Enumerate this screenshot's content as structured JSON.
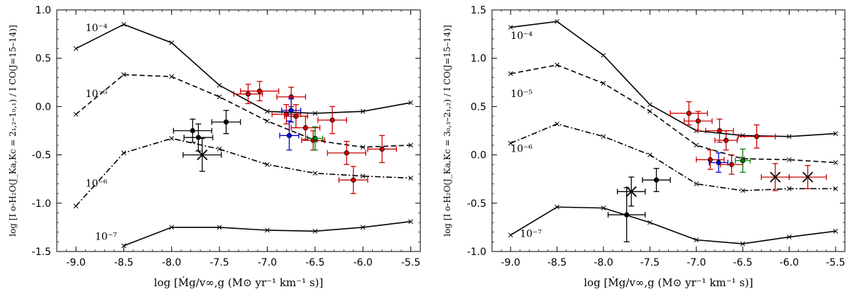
{
  "chart_data": [
    {
      "type": "scatter",
      "xlabel": "log [Ṁg/v∞,g (M⊙ yr⁻¹ km⁻¹ s)]",
      "ylabel": "log [I o-H₂O(J_Ka,Kc = 2₁,₂–1₀,₁) / I CO(J=15–14)]",
      "xlim": [
        -9.2,
        -5.4
      ],
      "ylim": [
        -1.5,
        1.0
      ],
      "xticks": [
        -9.0,
        -8.5,
        -8.0,
        -7.5,
        -7.0,
        -6.5,
        -6.0,
        -5.5
      ],
      "xtick_labels": [
        "-9.0",
        "-8.5",
        "-8.0",
        "-7.5",
        "-7.0",
        "-6.5",
        "-6.0",
        "-5.5"
      ],
      "yticks": [
        -1.5,
        -1.0,
        -0.5,
        0.0,
        0.5,
        1.0
      ],
      "ytick_labels": [
        "-1.5",
        "-1.0",
        "-0.5",
        "0.0",
        "0.5",
        "1.0"
      ],
      "model_curves": [
        {
          "name": "1e-4",
          "label": "10⁻⁴",
          "style": "solid",
          "label_x": -8.9,
          "label_y": 0.78,
          "x": [
            -9.0,
            -8.5,
            -8.0,
            -7.5,
            -7.0,
            -6.5,
            -6.0,
            -5.5
          ],
          "y": [
            0.6,
            0.85,
            0.66,
            0.22,
            -0.05,
            -0.07,
            -0.05,
            0.04
          ]
        },
        {
          "name": "1e-5",
          "label": "10⁻⁵",
          "style": "dashed",
          "label_x": -8.9,
          "label_y": 0.1,
          "x": [
            -9.0,
            -8.5,
            -8.0,
            -7.5,
            -7.0,
            -6.5,
            -6.0,
            -5.5
          ],
          "y": [
            -0.08,
            0.33,
            0.31,
            0.1,
            -0.15,
            -0.35,
            -0.42,
            -0.4
          ]
        },
        {
          "name": "1e-6",
          "label": "10⁻⁶",
          "style": "dashdot",
          "label_x": -8.9,
          "label_y": -0.83,
          "x": [
            -9.0,
            -8.5,
            -8.0,
            -7.5,
            -7.0,
            -6.5,
            -6.0,
            -5.5
          ],
          "y": [
            -1.03,
            -0.48,
            -0.33,
            -0.44,
            -0.6,
            -0.69,
            -0.72,
            -0.74
          ]
        },
        {
          "name": "1e-7",
          "label": "10⁻⁷",
          "style": "solid",
          "label_x": -8.8,
          "label_y": -1.38,
          "x": [
            -8.5,
            -8.0,
            -7.5,
            -7.0,
            -6.5,
            -6.0,
            -5.5
          ],
          "y": [
            -1.44,
            -1.25,
            -1.25,
            -1.28,
            -1.29,
            -1.25,
            -1.19
          ]
        }
      ],
      "observations": [
        {
          "x": -7.78,
          "y": -0.25,
          "xerr": 0.2,
          "yerr": 0.12,
          "group": "black",
          "marker": "dot"
        },
        {
          "x": -7.72,
          "y": -0.32,
          "xerr": 0.15,
          "yerr": 0.14,
          "group": "black",
          "marker": "dot"
        },
        {
          "x": -7.43,
          "y": -0.16,
          "xerr": 0.15,
          "yerr": 0.12,
          "group": "black",
          "marker": "dot"
        },
        {
          "x": -7.68,
          "y": -0.5,
          "xerr": 0.2,
          "yerr": 0.17,
          "group": "black",
          "marker": "x"
        },
        {
          "x": -7.2,
          "y": 0.13,
          "xerr": 0.15,
          "yerr": 0.1,
          "group": "red",
          "marker": "dot"
        },
        {
          "x": -7.08,
          "y": 0.16,
          "xerr": 0.2,
          "yerr": 0.1,
          "group": "red",
          "marker": "dot"
        },
        {
          "x": -6.8,
          "y": -0.08,
          "xerr": 0.15,
          "yerr": 0.1,
          "group": "red",
          "marker": "dot"
        },
        {
          "x": -6.7,
          "y": -0.1,
          "xerr": 0.12,
          "yerr": 0.12,
          "group": "red",
          "marker": "dot"
        },
        {
          "x": -6.75,
          "y": 0.1,
          "xerr": 0.15,
          "yerr": 0.1,
          "group": "red",
          "marker": "dot"
        },
        {
          "x": -6.6,
          "y": -0.22,
          "xerr": 0.15,
          "yerr": 0.12,
          "group": "red",
          "marker": "dot"
        },
        {
          "x": -6.52,
          "y": -0.35,
          "xerr": 0.12,
          "yerr": 0.1,
          "group": "red",
          "marker": "dot"
        },
        {
          "x": -6.32,
          "y": -0.14,
          "xerr": 0.15,
          "yerr": 0.14,
          "group": "red",
          "marker": "dot"
        },
        {
          "x": -6.17,
          "y": -0.48,
          "xerr": 0.2,
          "yerr": 0.12,
          "group": "red",
          "marker": "dot"
        },
        {
          "x": -6.1,
          "y": -0.76,
          "xerr": 0.15,
          "yerr": 0.14,
          "group": "red",
          "marker": "dot"
        },
        {
          "x": -5.8,
          "y": -0.44,
          "xerr": 0.15,
          "yerr": 0.14,
          "group": "red",
          "marker": "dot"
        },
        {
          "x": -6.75,
          "y": -0.04,
          "xerr": 0.1,
          "yerr": 0.12,
          "group": "blue",
          "marker": "dot"
        },
        {
          "x": -6.77,
          "y": -0.3,
          "xerr": 0.1,
          "yerr": 0.15,
          "group": "blue",
          "marker": "dot"
        },
        {
          "x": -6.5,
          "y": -0.33,
          "xerr": 0.08,
          "yerr": 0.12,
          "group": "green",
          "marker": "dot"
        }
      ]
    },
    {
      "type": "scatter",
      "xlabel": "log [Ṁg/v∞,g (M⊙ yr⁻¹ km⁻¹ s)]",
      "ylabel": "log [I o-H₂O(J_Ka,Kc = 3₀,₃–2₁,₂) / I CO(J=15–14)]",
      "xlim": [
        -9.2,
        -5.4
      ],
      "ylim": [
        -1.0,
        1.5
      ],
      "xticks": [
        -9.0,
        -8.5,
        -8.0,
        -7.5,
        -7.0,
        -6.5,
        -6.0,
        -5.5
      ],
      "xtick_labels": [
        "-9.0",
        "-8.5",
        "-8.0",
        "-7.5",
        "-7.0",
        "-6.5",
        "-6.0",
        "-5.5"
      ],
      "yticks": [
        -1.0,
        -0.5,
        0.0,
        0.5,
        1.0,
        1.5
      ],
      "ytick_labels": [
        "-1.0",
        "-0.5",
        "0.0",
        "0.5",
        "1.0",
        "1.5"
      ],
      "model_curves": [
        {
          "name": "1e-4",
          "label": "10⁻⁴",
          "style": "solid",
          "label_x": -9.0,
          "label_y": 1.2,
          "x": [
            -9.0,
            -8.5,
            -8.0,
            -7.5,
            -7.0,
            -6.5,
            -6.0,
            -5.5
          ],
          "y": [
            1.32,
            1.38,
            1.03,
            0.52,
            0.25,
            0.2,
            0.19,
            0.22
          ]
        },
        {
          "name": "1e-5",
          "label": "10⁻⁵",
          "style": "dashed",
          "label_x": -9.0,
          "label_y": 0.6,
          "x": [
            -9.0,
            -8.5,
            -8.0,
            -7.5,
            -7.0,
            -6.5,
            -6.0,
            -5.5
          ],
          "y": [
            0.84,
            0.93,
            0.74,
            0.45,
            0.1,
            -0.04,
            -0.05,
            -0.08
          ]
        },
        {
          "name": "1e-6",
          "label": "10⁻⁶",
          "style": "dashdot",
          "label_x": -9.0,
          "label_y": 0.03,
          "x": [
            -9.0,
            -8.5,
            -8.0,
            -7.5,
            -7.0,
            -6.5,
            -6.0,
            -5.5
          ],
          "y": [
            0.12,
            0.32,
            0.19,
            0.0,
            -0.3,
            -0.37,
            -0.35,
            -0.35
          ]
        },
        {
          "name": "1e-7",
          "label": "10⁻⁷",
          "style": "solid",
          "label_x": -8.9,
          "label_y": -0.85,
          "x": [
            -9.0,
            -8.5,
            -8.0,
            -7.5,
            -7.0,
            -6.5,
            -6.0,
            -5.5
          ],
          "y": [
            -0.83,
            -0.54,
            -0.55,
            -0.7,
            -0.88,
            -0.92,
            -0.85,
            -0.79
          ]
        }
      ],
      "observations": [
        {
          "x": -7.75,
          "y": -0.62,
          "xerr": 0.2,
          "yerr": 0.28,
          "group": "black",
          "marker": "dot"
        },
        {
          "x": -7.43,
          "y": -0.26,
          "xerr": 0.15,
          "yerr": 0.12,
          "group": "black",
          "marker": "dot"
        },
        {
          "x": -7.7,
          "y": -0.38,
          "xerr": 0.15,
          "yerr": 0.15,
          "group": "black",
          "marker": "x"
        },
        {
          "x": -7.08,
          "y": 0.43,
          "xerr": 0.2,
          "yerr": 0.12,
          "group": "red",
          "marker": "dot"
        },
        {
          "x": -6.98,
          "y": 0.35,
          "xerr": 0.15,
          "yerr": 0.1,
          "group": "red",
          "marker": "dot"
        },
        {
          "x": -6.75,
          "y": 0.25,
          "xerr": 0.15,
          "yerr": 0.12,
          "group": "red",
          "marker": "dot"
        },
        {
          "x": -6.68,
          "y": 0.15,
          "xerr": 0.12,
          "yerr": 0.1,
          "group": "red",
          "marker": "dot"
        },
        {
          "x": -6.35,
          "y": 0.19,
          "xerr": 0.2,
          "yerr": 0.12,
          "group": "red",
          "marker": "dot"
        },
        {
          "x": -6.85,
          "y": -0.05,
          "xerr": 0.15,
          "yerr": 0.1,
          "group": "red",
          "marker": "dot"
        },
        {
          "x": -6.62,
          "y": -0.1,
          "xerr": 0.12,
          "yerr": 0.1,
          "group": "red",
          "marker": "dot"
        },
        {
          "x": -6.15,
          "y": -0.23,
          "xerr": 0.15,
          "yerr": 0.14,
          "group": "red",
          "marker": "x"
        },
        {
          "x": -5.8,
          "y": -0.23,
          "xerr": 0.2,
          "yerr": 0.12,
          "group": "red",
          "marker": "x"
        },
        {
          "x": -6.76,
          "y": -0.08,
          "xerr": 0.1,
          "yerr": 0.1,
          "group": "blue",
          "marker": "dot"
        },
        {
          "x": -6.5,
          "y": -0.06,
          "xerr": 0.08,
          "yerr": 0.12,
          "group": "green",
          "marker": "dot"
        }
      ]
    }
  ],
  "colors": {
    "black": "#000000",
    "red": "#cc0000",
    "blue": "#0000cc",
    "green": "#008000"
  }
}
